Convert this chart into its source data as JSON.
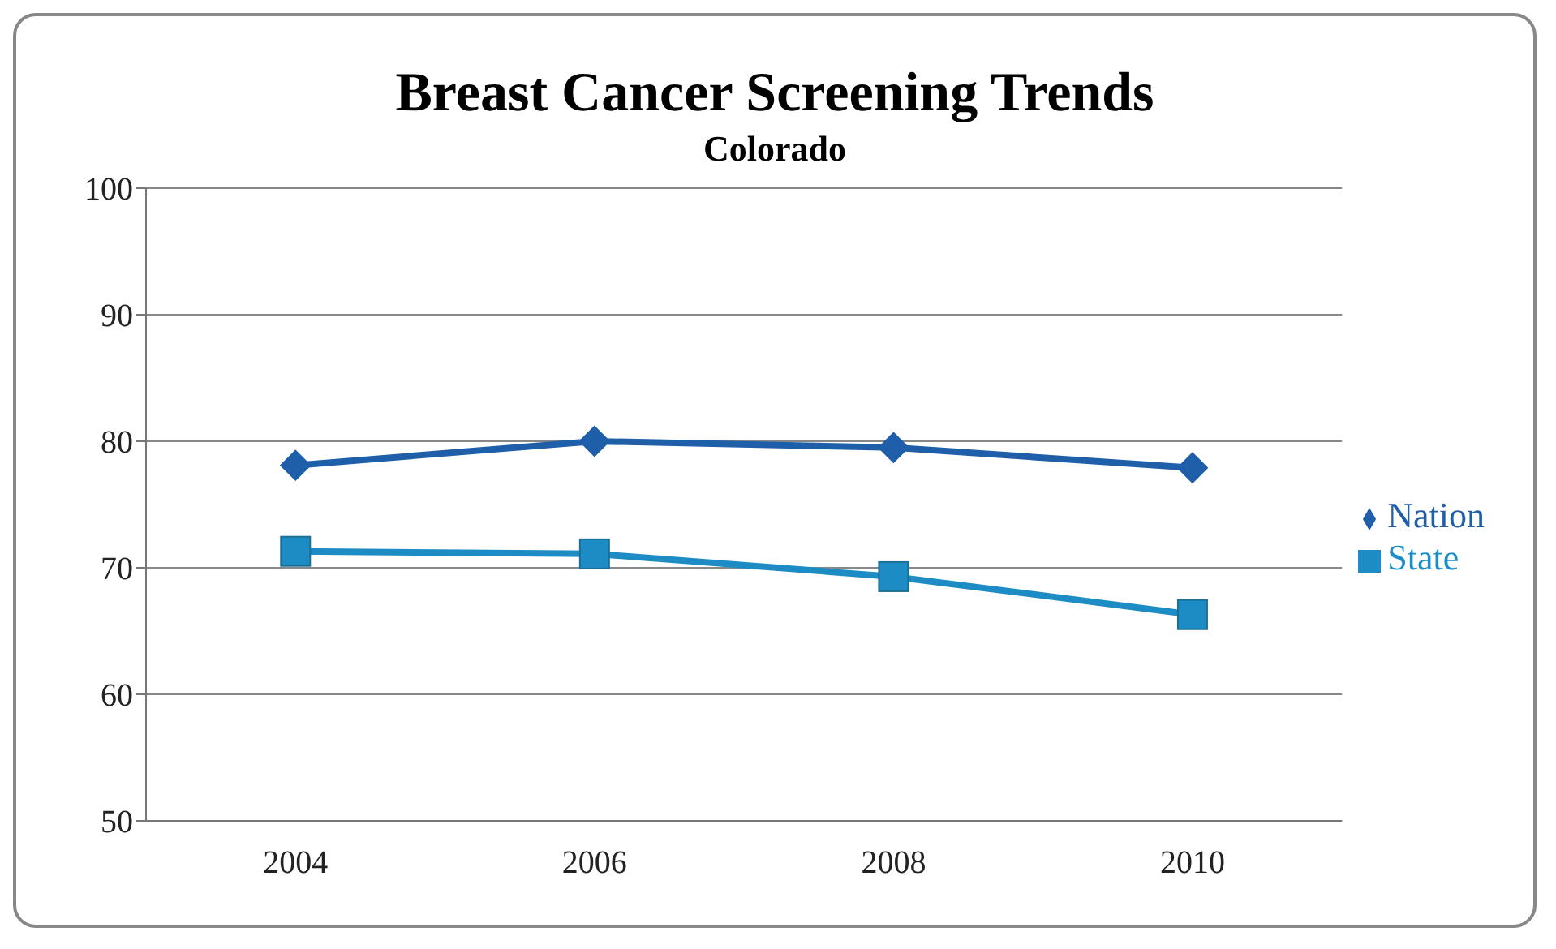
{
  "chart_data": {
    "type": "line",
    "title": "Breast Cancer Screening Trends",
    "subtitle": "Colorado",
    "categories": [
      "2004",
      "2006",
      "2008",
      "2010"
    ],
    "series": [
      {
        "name": "Nation",
        "color": "#1f5faa",
        "marker": "diamond",
        "values": [
          78.1,
          80.0,
          79.5,
          77.9
        ]
      },
      {
        "name": "State",
        "color": "#1e8cc4",
        "marker": "square",
        "values": [
          71.3,
          71.1,
          69.3,
          66.3
        ]
      }
    ],
    "ylim": [
      50,
      100
    ],
    "yticks": [
      50,
      60,
      70,
      80,
      90,
      100
    ],
    "grid": "y",
    "legend": "right",
    "line_style": "solid"
  }
}
